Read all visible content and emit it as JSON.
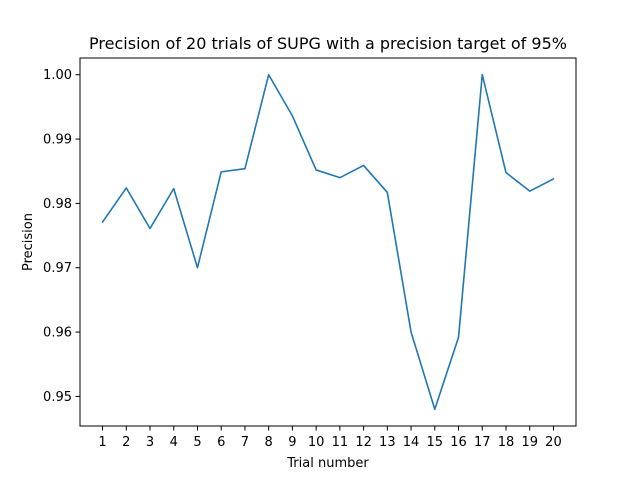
{
  "chart_data": {
    "type": "line",
    "title": "Precision of 20 trials of SUPG with a precision target of 95%",
    "xlabel": "Trial number",
    "ylabel": "Precision",
    "x": [
      1,
      2,
      3,
      4,
      5,
      6,
      7,
      8,
      9,
      10,
      11,
      12,
      13,
      14,
      15,
      16,
      17,
      18,
      19,
      20
    ],
    "x_ticks": [
      "1",
      "2",
      "3",
      "4",
      "5",
      "6",
      "7",
      "8",
      "9",
      "10",
      "11",
      "12",
      "13",
      "14",
      "15",
      "16",
      "17",
      "18",
      "19",
      "20"
    ],
    "xlim": [
      0.05,
      20.95
    ],
    "ylim": [
      0.9454,
      1.0026
    ],
    "y_ticks": [
      0.95,
      0.96,
      0.97,
      0.98,
      0.99,
      1.0
    ],
    "y_tick_labels": [
      "0.95",
      "0.96",
      "0.97",
      "0.98",
      "0.99",
      "1.00"
    ],
    "grid": false,
    "series": [
      {
        "color": "#1f77b4",
        "values": [
          0.9771,
          0.9824,
          0.9761,
          0.9823,
          0.97,
          0.9849,
          0.9854,
          1.0,
          0.9936,
          0.9852,
          0.984,
          0.9859,
          0.9817,
          0.96,
          0.948,
          0.9592,
          1.0,
          0.9848,
          0.9819,
          0.9838
        ]
      }
    ]
  }
}
